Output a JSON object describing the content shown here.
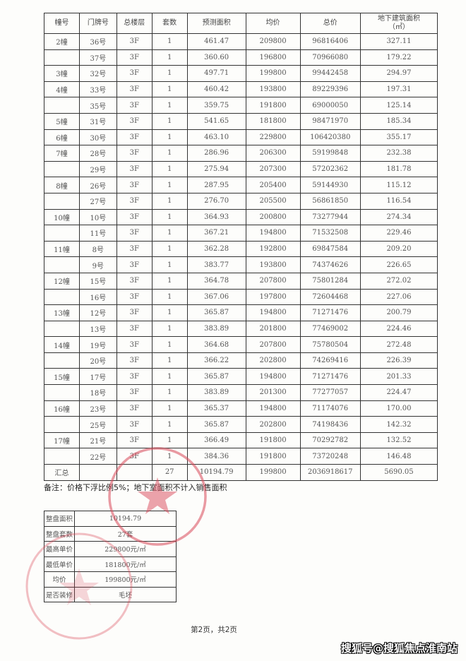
{
  "table": {
    "headers": [
      "幢号",
      "门牌号",
      "总楼层",
      "套数",
      "预测面积",
      "均价",
      "总价",
      "地下建筑面积\n（㎡）"
    ],
    "rows": [
      [
        "2幢",
        "36号",
        "3F",
        "1",
        "461.47",
        "209800",
        "96816406",
        "327.11"
      ],
      [
        "",
        "37号",
        "3F",
        "1",
        "360.60",
        "196800",
        "70966080",
        "179.22"
      ],
      [
        "3幢",
        "32号",
        "3F",
        "1",
        "497.71",
        "199800",
        "99442458",
        "294.97"
      ],
      [
        "4幢",
        "33号",
        "3F",
        "1",
        "460.42",
        "193800",
        "89229396",
        "197.31"
      ],
      [
        "",
        "35号",
        "3F",
        "1",
        "359.75",
        "191800",
        "69000050",
        "125.14"
      ],
      [
        "5幢",
        "31号",
        "3F",
        "1",
        "541.65",
        "181800",
        "98471970",
        "185.34"
      ],
      [
        "6幢",
        "30号",
        "3F",
        "1",
        "463.10",
        "229800",
        "106420380",
        "355.17"
      ],
      [
        "7幢",
        "28号",
        "3F",
        "1",
        "286.96",
        "206300",
        "59199848",
        "232.38"
      ],
      [
        "",
        "29号",
        "3F",
        "1",
        "275.94",
        "207300",
        "57202362",
        "181.78"
      ],
      [
        "8幢",
        "26号",
        "3F",
        "1",
        "287.95",
        "205400",
        "59144930",
        "115.12"
      ],
      [
        "",
        "27号",
        "3F",
        "1",
        "276.70",
        "205500",
        "56861850",
        "116.54"
      ],
      [
        "10幢",
        "10号",
        "3F",
        "1",
        "364.93",
        "200800",
        "73277944",
        "274.34"
      ],
      [
        "",
        "11号",
        "3F",
        "1",
        "367.21",
        "194800",
        "71532508",
        "229.46"
      ],
      [
        "11幢",
        "8号",
        "3F",
        "1",
        "362.28",
        "192800",
        "69847584",
        "209.20"
      ],
      [
        "",
        "9号",
        "3F",
        "1",
        "383.77",
        "193800",
        "74374626",
        "226.65"
      ],
      [
        "12幢",
        "15号",
        "3F",
        "1",
        "364.78",
        "207800",
        "75801284",
        "272.02"
      ],
      [
        "",
        "16号",
        "3F",
        "1",
        "367.06",
        "197800",
        "72604468",
        "227.06"
      ],
      [
        "13幢",
        "12号",
        "3F",
        "1",
        "365.87",
        "194800",
        "71271476",
        "200.79"
      ],
      [
        "",
        "13号",
        "3F",
        "1",
        "383.89",
        "201800",
        "77469002",
        "224.46"
      ],
      [
        "14幢",
        "19号",
        "3F",
        "1",
        "364.68",
        "207800",
        "75780504",
        "272.48"
      ],
      [
        "",
        "20号",
        "3F",
        "1",
        "366.22",
        "202800",
        "74269416",
        "226.39"
      ],
      [
        "15幢",
        "17号",
        "3F",
        "1",
        "365.87",
        "194800",
        "71271476",
        "201.33"
      ],
      [
        "",
        "18号",
        "3F",
        "1",
        "383.89",
        "201300",
        "77277057",
        "224.47"
      ],
      [
        "16幢",
        "23号",
        "3F",
        "1",
        "365.37",
        "194800",
        "71174076",
        "170.00"
      ],
      [
        "",
        "25号",
        "3F",
        "1",
        "365.87",
        "202800",
        "74198436",
        "142.32"
      ],
      [
        "17幢",
        "21号",
        "3F",
        "1",
        "366.49",
        "191800",
        "70292782",
        "132.52"
      ],
      [
        "",
        "22号",
        "3F",
        "1",
        "384.36",
        "191800",
        "73720248",
        "146.48"
      ]
    ],
    "total": [
      "汇总",
      "",
      "",
      "27",
      "10194.79",
      "199800",
      "2036918617",
      "5690.05"
    ]
  },
  "remark": "备注：价格下浮比例5%；地下室面积不计入销售面积",
  "summary": [
    {
      "label": "整盘面积",
      "value": "10194.79"
    },
    {
      "label": "整盘套数",
      "value": "27套"
    },
    {
      "label": "最高单价",
      "value": "229800元/㎡"
    },
    {
      "label": "最低单价",
      "value": "181800元/㎡"
    },
    {
      "label": "均价",
      "value": "199800元/㎡"
    },
    {
      "label": "是否装修",
      "value": "毛坯"
    }
  ],
  "footer": "第2页，共2页",
  "watermark": "搜狐号@搜狐焦点淮南站",
  "colors": {
    "stamp": "#d9485a",
    "ink": "#333333"
  }
}
